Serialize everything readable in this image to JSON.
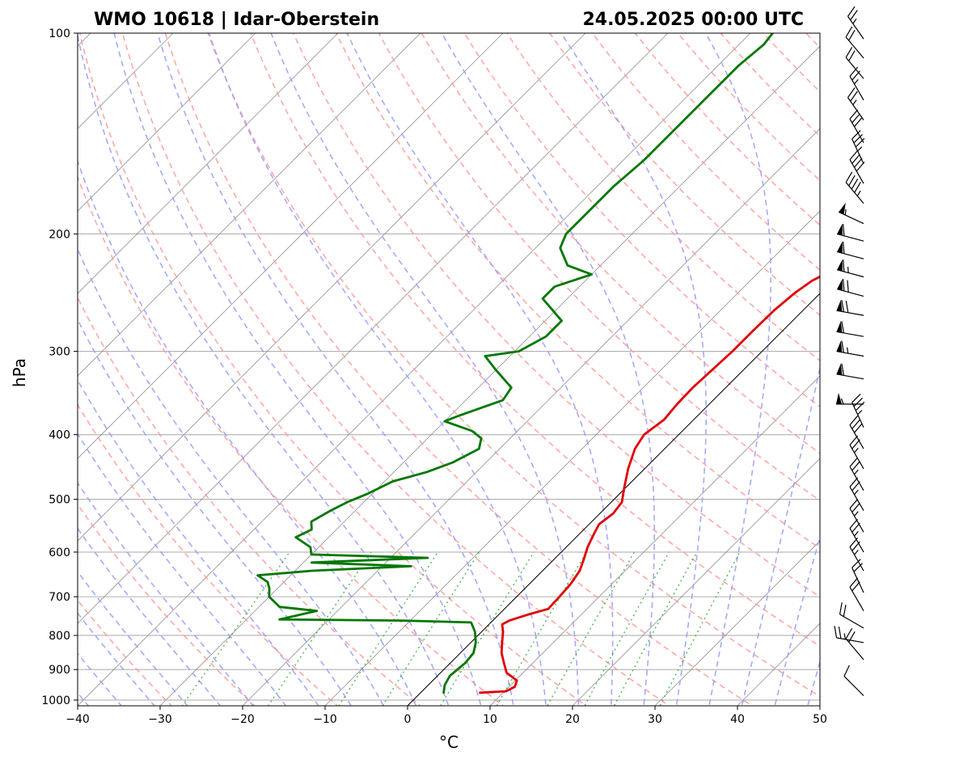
{
  "chart_data": {
    "type": "skew-t",
    "title_left": "WMO 10618 | Idar-Oberstein",
    "title_right": "24.05.2025 00:00 UTC",
    "xlabel": "°C",
    "ylabel": "hPa",
    "xlim": [
      -40,
      50
    ],
    "ylim": [
      1020,
      100
    ],
    "y_scale": "log",
    "grid": true,
    "x_ticks": [
      "−40",
      "−30",
      "−20",
      "−10",
      "0",
      "10",
      "20",
      "30",
      "40",
      "50"
    ],
    "y_ticks": [
      "1000",
      "900",
      "800",
      "700",
      "600",
      "500",
      "400",
      "300",
      "200",
      "100"
    ],
    "reference_lines": {
      "isotherms_color": "#808080",
      "dry_adiabats_color": "#ff9999",
      "moist_adiabats_color": "#9999ff",
      "mixing_ratio_color": "#33aa33",
      "zero_isotherm_color": "#000000"
    },
    "series": [
      {
        "key": "temperature",
        "color": "#e00000",
        "points": [
          [
            975,
            7.2
          ],
          [
            970,
            10.2
          ],
          [
            955,
            10.7
          ],
          [
            935,
            10.2
          ],
          [
            910,
            8.0
          ],
          [
            880,
            6.5
          ],
          [
            850,
            5.0
          ],
          [
            820,
            3.8
          ],
          [
            790,
            2.6
          ],
          [
            770,
            1.6
          ],
          [
            760,
            2.0
          ],
          [
            745,
            3.5
          ],
          [
            730,
            5.3
          ],
          [
            700,
            5.2
          ],
          [
            670,
            5.0
          ],
          [
            640,
            4.5
          ],
          [
            615,
            3.6
          ],
          [
            590,
            2.6
          ],
          [
            565,
            1.8
          ],
          [
            545,
            1.2
          ],
          [
            525,
            1.6
          ],
          [
            505,
            1.3
          ],
          [
            480,
            -0.2
          ],
          [
            450,
            -2.0
          ],
          [
            420,
            -3.6
          ],
          [
            400,
            -4.2
          ],
          [
            380,
            -3.6
          ],
          [
            360,
            -3.9
          ],
          [
            340,
            -4.0
          ],
          [
            320,
            -3.8
          ],
          [
            300,
            -3.6
          ],
          [
            280,
            -3.6
          ],
          [
            260,
            -3.5
          ],
          [
            245,
            -3.1
          ],
          [
            235,
            -2.5
          ],
          [
            225,
            -1.0
          ],
          [
            215,
            0.5
          ],
          [
            205,
            2.0
          ],
          [
            197,
            3.5
          ],
          [
            190,
            4.0
          ],
          [
            180,
            4.0
          ],
          [
            170,
            4.6
          ],
          [
            160,
            6.0
          ],
          [
            150,
            6.6
          ],
          [
            140,
            8.0
          ],
          [
            130,
            9.6
          ],
          [
            120,
            10.6
          ],
          [
            110,
            12.0
          ],
          [
            104,
            13.0
          ],
          [
            100,
            14.4
          ]
        ]
      },
      {
        "key": "dewpoint",
        "color": "#007700",
        "points": [
          [
            975,
            2.8
          ],
          [
            950,
            2.0
          ],
          [
            920,
            1.5
          ],
          [
            880,
            1.8
          ],
          [
            850,
            1.6
          ],
          [
            820,
            0.6
          ],
          [
            790,
            -0.8
          ],
          [
            765,
            -2.4
          ],
          [
            760,
            -11.0
          ],
          [
            757,
            -26.0
          ],
          [
            735,
            -22.5
          ],
          [
            725,
            -27.5
          ],
          [
            700,
            -30.0
          ],
          [
            680,
            -31.0
          ],
          [
            665,
            -32.0
          ],
          [
            650,
            -34.0
          ],
          [
            640,
            -28.0
          ],
          [
            630,
            -16.5
          ],
          [
            622,
            -29.0
          ],
          [
            612,
            -15.5
          ],
          [
            605,
            -30.0
          ],
          [
            590,
            -31.0
          ],
          [
            570,
            -34.0
          ],
          [
            555,
            -33.0
          ],
          [
            540,
            -34.0
          ],
          [
            520,
            -33.0
          ],
          [
            505,
            -32.0
          ],
          [
            490,
            -30.5
          ],
          [
            470,
            -29.0
          ],
          [
            455,
            -26.0
          ],
          [
            440,
            -24.0
          ],
          [
            420,
            -22.5
          ],
          [
            405,
            -23.5
          ],
          [
            395,
            -25.5
          ],
          [
            382,
            -30.0
          ],
          [
            375,
            -29.0
          ],
          [
            355,
            -25.5
          ],
          [
            340,
            -26.0
          ],
          [
            320,
            -30.0
          ],
          [
            305,
            -33.0
          ],
          [
            300,
            -29.5
          ],
          [
            285,
            -28.0
          ],
          [
            270,
            -28.0
          ],
          [
            250,
            -33.0
          ],
          [
            240,
            -33.0
          ],
          [
            230,
            -30.0
          ],
          [
            223,
            -34.0
          ],
          [
            210,
            -37.0
          ],
          [
            205,
            -37.5
          ],
          [
            200,
            -38.0
          ],
          [
            185,
            -38.0
          ],
          [
            170,
            -38.0
          ],
          [
            155,
            -37.5
          ],
          [
            140,
            -37.5
          ],
          [
            125,
            -37.5
          ],
          [
            112,
            -37.5
          ],
          [
            104,
            -37.0
          ],
          [
            100,
            -37.3
          ]
        ]
      }
    ],
    "wind_barbs": [
      {
        "p": 985,
        "speed_kt": 10,
        "dir": 315
      },
      {
        "p": 870,
        "speed_kt": 20,
        "dir": 320
      },
      {
        "p": 820,
        "speed_kt": 25,
        "dir": 280
      },
      {
        "p": 780,
        "speed_kt": 20,
        "dir": 300
      },
      {
        "p": 735,
        "speed_kt": 20,
        "dir": 330
      },
      {
        "p": 690,
        "speed_kt": 20,
        "dir": 335
      },
      {
        "p": 640,
        "speed_kt": 25,
        "dir": 330
      },
      {
        "p": 600,
        "speed_kt": 25,
        "dir": 330
      },
      {
        "p": 560,
        "speed_kt": 25,
        "dir": 330
      },
      {
        "p": 520,
        "speed_kt": 25,
        "dir": 330
      },
      {
        "p": 485,
        "speed_kt": 25,
        "dir": 330
      },
      {
        "p": 450,
        "speed_kt": 25,
        "dir": 330
      },
      {
        "p": 420,
        "speed_kt": 30,
        "dir": 330
      },
      {
        "p": 390,
        "speed_kt": 35,
        "dir": 335
      },
      {
        "p": 360,
        "speed_kt": 55,
        "dir": 270
      },
      {
        "p": 330,
        "speed_kt": 60,
        "dir": 280
      },
      {
        "p": 305,
        "speed_kt": 65,
        "dir": 280
      },
      {
        "p": 285,
        "speed_kt": 60,
        "dir": 280
      },
      {
        "p": 265,
        "speed_kt": 70,
        "dir": 280
      },
      {
        "p": 248,
        "speed_kt": 70,
        "dir": 285
      },
      {
        "p": 232,
        "speed_kt": 65,
        "dir": 285
      },
      {
        "p": 218,
        "speed_kt": 60,
        "dir": 285
      },
      {
        "p": 205,
        "speed_kt": 60,
        "dir": 285
      },
      {
        "p": 193,
        "speed_kt": 55,
        "dir": 295
      },
      {
        "p": 180,
        "speed_kt": 45,
        "dir": 320
      },
      {
        "p": 168,
        "speed_kt": 40,
        "dir": 330
      },
      {
        "p": 157,
        "speed_kt": 35,
        "dir": 335
      },
      {
        "p": 146,
        "speed_kt": 30,
        "dir": 330
      },
      {
        "p": 135,
        "speed_kt": 25,
        "dir": 325
      },
      {
        "p": 126,
        "speed_kt": 25,
        "dir": 330
      },
      {
        "p": 117,
        "speed_kt": 20,
        "dir": 320
      },
      {
        "p": 109,
        "speed_kt": 20,
        "dir": 320
      },
      {
        "p": 102,
        "speed_kt": 25,
        "dir": 325
      }
    ]
  }
}
